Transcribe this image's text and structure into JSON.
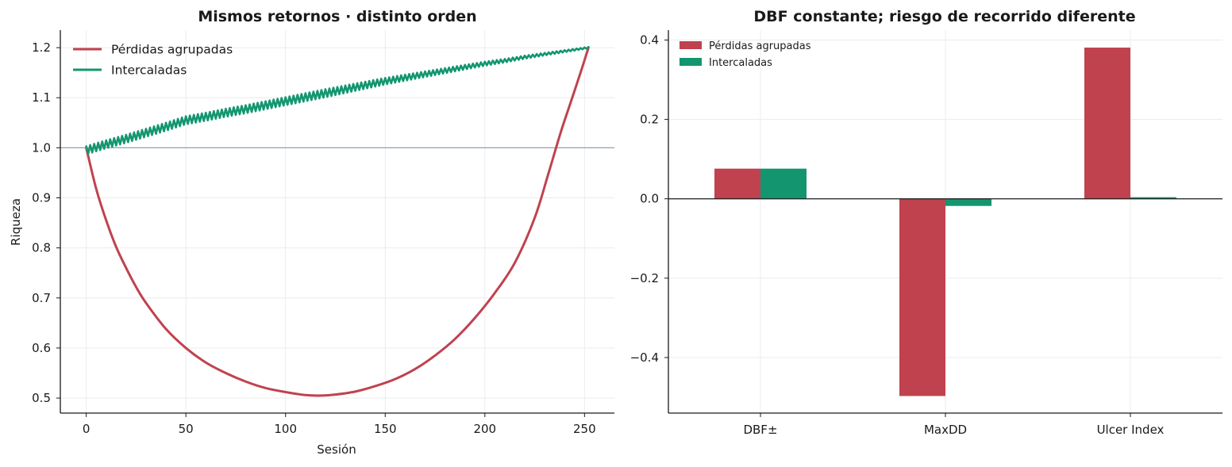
{
  "chart_data": [
    {
      "type": "line",
      "title": "Mismos retornos · distinto orden",
      "xlabel": "Sesión",
      "ylabel": "Riqueza",
      "xlim": [
        -13,
        265
      ],
      "ylim": [
        0.47,
        1.235
      ],
      "xticks": [
        0,
        50,
        100,
        150,
        200,
        250
      ],
      "yticks": [
        0.5,
        0.6,
        0.7,
        0.8,
        0.9,
        1.0,
        1.1,
        1.2
      ],
      "reference_line": 1.0,
      "grid": true,
      "legend_position": "top-left",
      "series": [
        {
          "name": "Pérdidas agrupadas",
          "color": "#c0424f",
          "x": [
            0,
            5,
            10,
            15,
            20,
            25,
            30,
            40,
            50,
            60,
            70,
            80,
            90,
            100,
            110,
            118,
            125,
            135,
            145,
            155,
            165,
            175,
            185,
            195,
            205,
            215,
            225,
            232,
            238,
            243,
            248,
            252
          ],
          "y": [
            1.0,
            0.918,
            0.855,
            0.802,
            0.76,
            0.722,
            0.69,
            0.638,
            0.6,
            0.571,
            0.55,
            0.533,
            0.52,
            0.512,
            0.506,
            0.505,
            0.507,
            0.513,
            0.524,
            0.538,
            0.558,
            0.585,
            0.618,
            0.66,
            0.71,
            0.77,
            0.86,
            0.95,
            1.03,
            1.09,
            1.15,
            1.2
          ]
        },
        {
          "name": "Intercaladas",
          "color": "#139670",
          "x": [
            0,
            10,
            20,
            30,
            40,
            50,
            60,
            70,
            80,
            90,
            100,
            110,
            120,
            130,
            140,
            150,
            160,
            170,
            180,
            190,
            200,
            210,
            220,
            230,
            240,
            252
          ],
          "y": [
            0.995,
            1.007,
            1.018,
            1.03,
            1.042,
            1.055,
            1.062,
            1.07,
            1.077,
            1.085,
            1.093,
            1.101,
            1.109,
            1.117,
            1.125,
            1.133,
            1.14,
            1.147,
            1.154,
            1.161,
            1.168,
            1.174,
            1.181,
            1.187,
            1.193,
            1.2
          ],
          "oscillation": 0.008
        }
      ]
    },
    {
      "type": "bar",
      "title": "DBF constante; riesgo de recorrido diferente",
      "categories": [
        "DBF±",
        "MaxDD",
        "Ulcer Index"
      ],
      "ylim": [
        -0.54,
        0.425
      ],
      "yticks": [
        -0.4,
        -0.2,
        0.0,
        0.2,
        0.4
      ],
      "ytick_labels": [
        "−0.4",
        "−0.2",
        "0.0",
        "0.2",
        "0.4"
      ],
      "grid": true,
      "legend_position": "top-left",
      "series": [
        {
          "name": "Pérdidas agrupadas",
          "color": "#c0424f",
          "values": [
            0.076,
            -0.497,
            0.381
          ]
        },
        {
          "name": "Intercaladas",
          "color": "#139670",
          "values": [
            0.076,
            -0.018,
            0.004
          ]
        }
      ]
    }
  ]
}
